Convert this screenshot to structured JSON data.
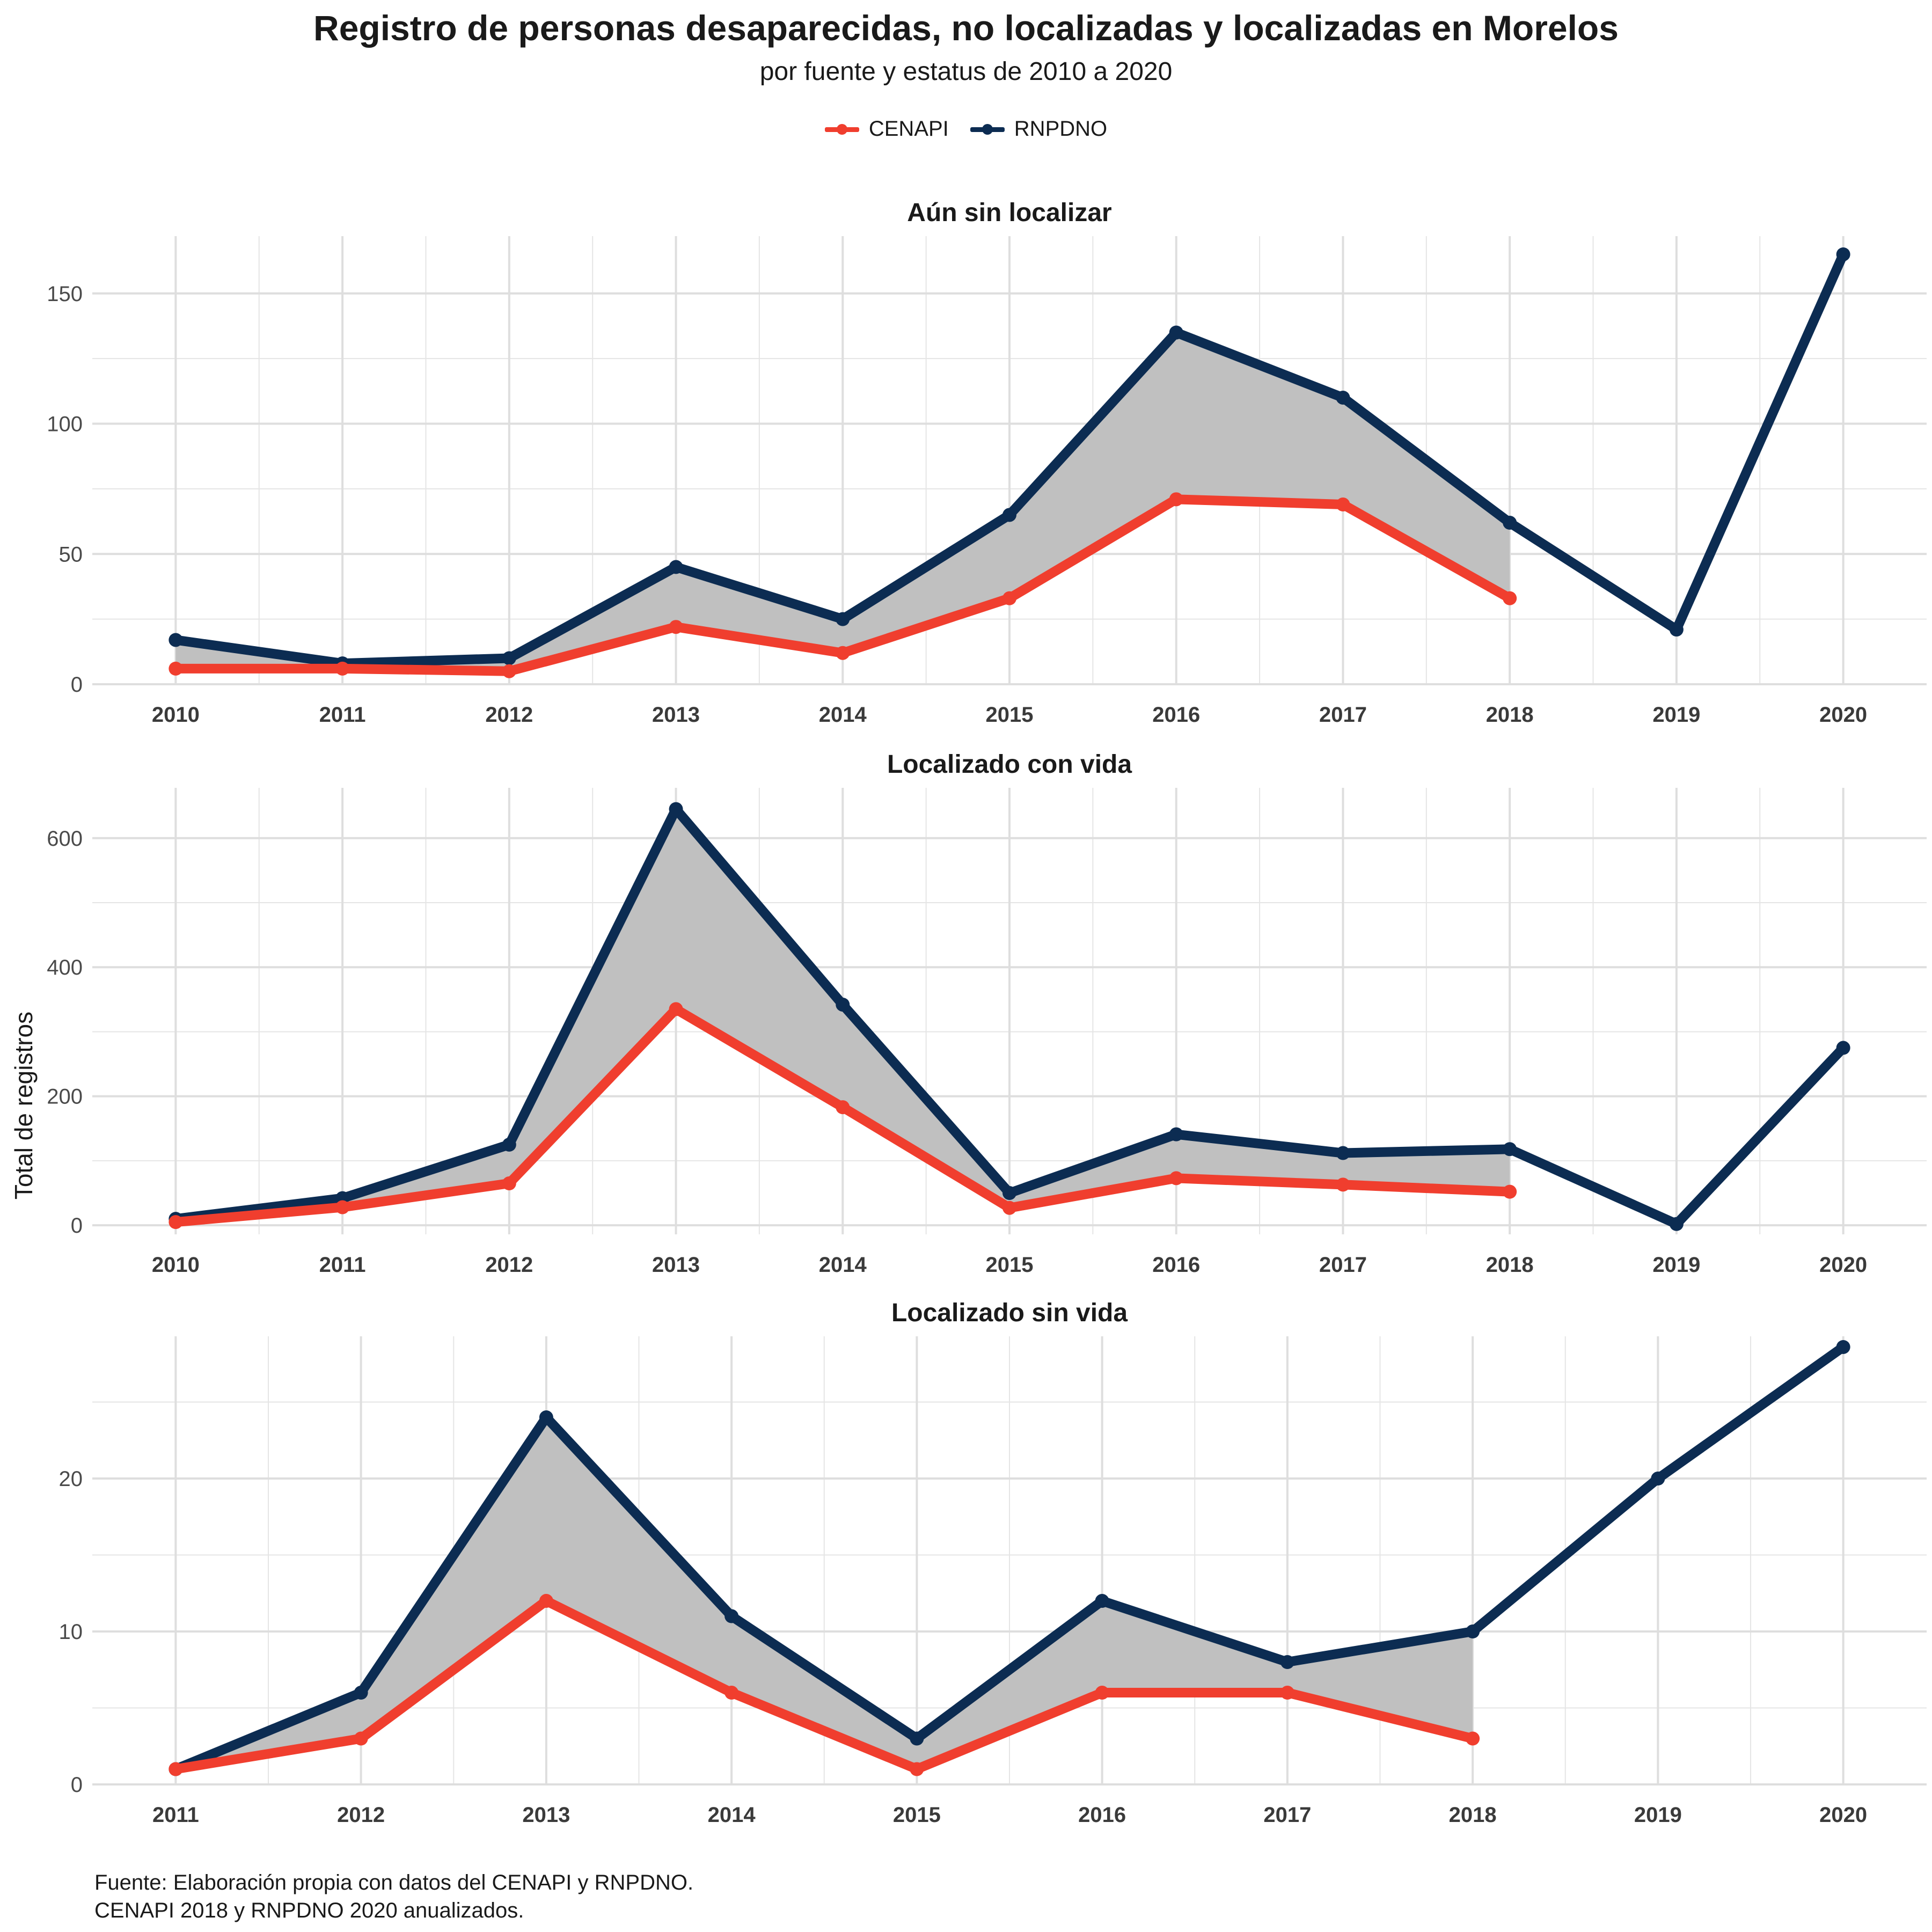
{
  "title": "Registro de personas desaparecidas, no localizadas y localizadas en Morelos",
  "subtitle": "por fuente y estatus de 2010 a 2020",
  "ylabel": "Total de registros",
  "caption_line1": "Fuente: Elaboración propia con datos del CENAPI y RNPDNO.",
  "caption_line2": "CENAPI 2018 y RNPDNO 2020 anualizados.",
  "legend": [
    {
      "name": "CENAPI",
      "color": "#f03e2e"
    },
    {
      "name": "RNPDNO",
      "color": "#0c2c52"
    }
  ],
  "colors": {
    "CENAPI": "#f03e2e",
    "RNPDNO": "#0c2c52",
    "ribbon": "#c0c0c0",
    "grid": "#e5e5e5"
  },
  "chart_data": [
    {
      "type": "line",
      "title": "Aún sin localizar",
      "x": [
        2010,
        2011,
        2012,
        2013,
        2014,
        2015,
        2016,
        2017,
        2018,
        2019,
        2020
      ],
      "xlim": [
        2009.5,
        2020.5
      ],
      "ylim": [
        0,
        172
      ],
      "yticks": [
        0,
        50,
        100,
        150
      ],
      "grid": true,
      "series": [
        {
          "name": "CENAPI",
          "values": [
            6,
            6,
            5,
            22,
            12,
            33,
            71,
            69,
            33,
            null,
            null
          ]
        },
        {
          "name": "RNPDNO",
          "values": [
            17,
            8,
            10,
            45,
            25,
            65,
            135,
            110,
            62,
            21,
            165
          ]
        }
      ]
    },
    {
      "type": "line",
      "title": "Localizado con vida",
      "x": [
        2010,
        2011,
        2012,
        2013,
        2014,
        2015,
        2016,
        2017,
        2018,
        2019,
        2020
      ],
      "xlim": [
        2009.5,
        2020.5
      ],
      "ylim": [
        -14,
        678
      ],
      "yticks": [
        0,
        200,
        400,
        600
      ],
      "grid": true,
      "series": [
        {
          "name": "CENAPI",
          "values": [
            5,
            28,
            65,
            335,
            183,
            27,
            73,
            63,
            52,
            null,
            null
          ]
        },
        {
          "name": "RNPDNO",
          "values": [
            10,
            42,
            125,
            645,
            342,
            50,
            141,
            112,
            118,
            2,
            275
          ]
        }
      ]
    },
    {
      "type": "line",
      "title": "Localizado sin vida",
      "x": [
        2011,
        2012,
        2013,
        2014,
        2015,
        2016,
        2017,
        2018,
        2019,
        2020
      ],
      "xlim": [
        2010.55,
        2020.45
      ],
      "ylim": [
        0,
        29.3
      ],
      "yticks": [
        0,
        10,
        20
      ],
      "grid": true,
      "series": [
        {
          "name": "CENAPI",
          "values": [
            1,
            3,
            12,
            6,
            1,
            6,
            6,
            3,
            null,
            null
          ]
        },
        {
          "name": "RNPDNO",
          "values": [
            1,
            6,
            24,
            11,
            3,
            12,
            8,
            10,
            20,
            28.6
          ]
        }
      ]
    }
  ]
}
